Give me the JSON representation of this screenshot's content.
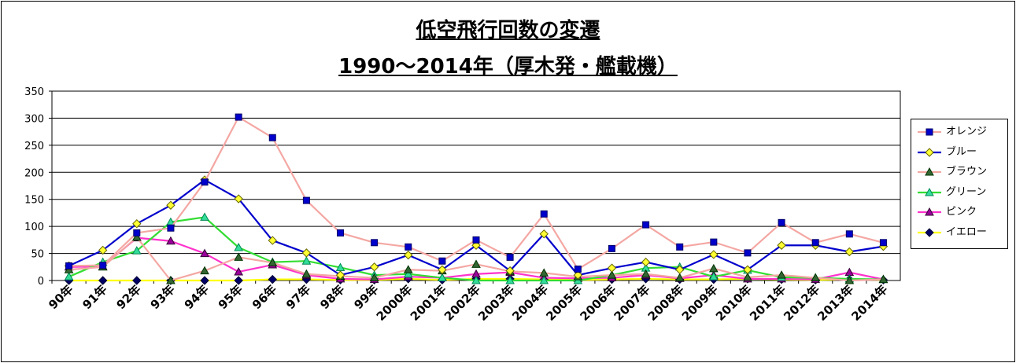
{
  "chart_data": {
    "type": "line",
    "title": "低空飛行回数の変遷",
    "subtitle": "1990～2014年（厚木発・艦載機）",
    "xlabel": "",
    "ylabel": "",
    "ylim": [
      0,
      350
    ],
    "yticks": [
      0,
      50,
      100,
      150,
      200,
      250,
      300,
      350
    ],
    "grid": true,
    "legend_position": "right",
    "categories": [
      "90年",
      "91年",
      "92年",
      "93年",
      "94年",
      "95年",
      "96年",
      "97年",
      "98年",
      "99年",
      "2000年",
      "2001年",
      "2002年",
      "2003年",
      "2004年",
      "2005年",
      "2006年",
      "2007年",
      "2008年",
      "2009年",
      "2010年",
      "2011年",
      "2012年",
      "2013年",
      "2014年"
    ],
    "series": [
      {
        "name": "オレンジ",
        "line_color": "#f4a7a3",
        "marker": "square",
        "marker_color": "#0000cc",
        "marker_edge": "#000066",
        "values": [
          27,
          28,
          88,
          97,
          182,
          302,
          264,
          148,
          88,
          70,
          62,
          36,
          75,
          43,
          123,
          21,
          59,
          103,
          62,
          71,
          51,
          107,
          70,
          86,
          70
        ]
      },
      {
        "name": "ブルー",
        "line_color": "#0000cc",
        "marker": "diamond",
        "marker_color": "#ffff33",
        "marker_edge": "#666600",
        "values": [
          27,
          56,
          105,
          139,
          186,
          151,
          74,
          51,
          10,
          25,
          47,
          20,
          65,
          18,
          86,
          10,
          23,
          34,
          20,
          48,
          20,
          65,
          65,
          53,
          63
        ]
      },
      {
        "name": "ブラウン",
        "line_color": "#f4a7a3",
        "marker": "triangle",
        "marker_color": "#336633",
        "marker_edge": "#003300",
        "values": [
          20,
          25,
          80,
          0,
          18,
          43,
          33,
          12,
          8,
          5,
          20,
          18,
          30,
          17,
          14,
          7,
          10,
          12,
          5,
          22,
          6,
          10,
          5,
          0,
          2
        ]
      },
      {
        "name": "グリーン",
        "line_color": "#33dd33",
        "marker": "triangle",
        "marker_color": "#33dd99",
        "marker_edge": "#008855",
        "values": [
          7,
          34,
          55,
          108,
          117,
          61,
          34,
          36,
          24,
          10,
          12,
          5,
          0,
          0,
          0,
          0,
          10,
          23,
          25,
          7,
          19,
          6,
          5,
          3,
          2
        ]
      },
      {
        "name": "ピンク",
        "line_color": "#ff33cc",
        "marker": "triangle",
        "marker_color": "#990099",
        "marker_edge": "#330033",
        "values": [
          25,
          26,
          79,
          73,
          50,
          16,
          29,
          10,
          3,
          2,
          7,
          5,
          12,
          15,
          5,
          4,
          5,
          10,
          4,
          10,
          3,
          3,
          2,
          15,
          2
        ]
      },
      {
        "name": "イエロー",
        "line_color": "#ffff00",
        "marker": "diamond",
        "marker_color": "#000066",
        "marker_edge": "#000033",
        "values": [
          0,
          0,
          0,
          0,
          0,
          0,
          2,
          2,
          1,
          1,
          3,
          1,
          3,
          3,
          2,
          1,
          2,
          3,
          2,
          2,
          3,
          2,
          1,
          2,
          1
        ]
      }
    ]
  }
}
